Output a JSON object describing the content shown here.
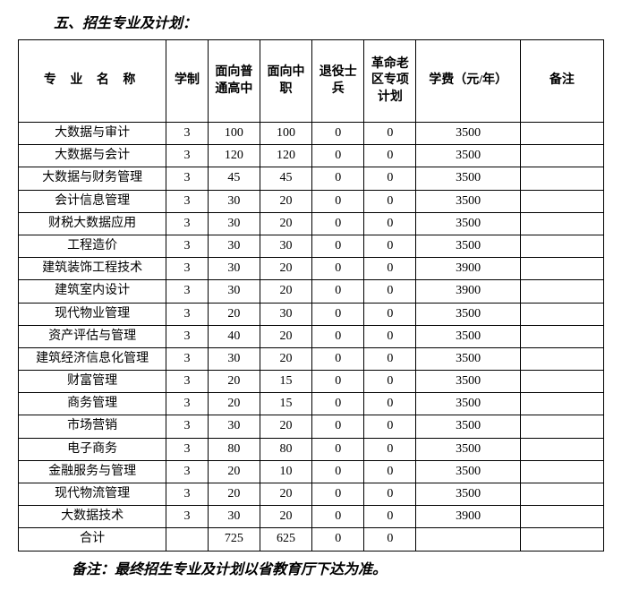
{
  "title": "五、招生专业及计划：",
  "headers": {
    "name": "专 业 名 称",
    "duration": "学制",
    "colA": "面向普通高中",
    "colB": "面向中职",
    "colC": "退役士兵",
    "colD": "革命老区专项计划",
    "fee": "学费（元/年）",
    "remark": "备注"
  },
  "table": {
    "columns": [
      "name",
      "duration",
      "a",
      "b",
      "c",
      "d",
      "fee",
      "remark"
    ],
    "rows": [
      [
        "大数据与审计",
        "3",
        "100",
        "100",
        "0",
        "0",
        "3500",
        ""
      ],
      [
        "大数据与会计",
        "3",
        "120",
        "120",
        "0",
        "0",
        "3500",
        ""
      ],
      [
        "大数据与财务管理",
        "3",
        "45",
        "45",
        "0",
        "0",
        "3500",
        ""
      ],
      [
        "会计信息管理",
        "3",
        "30",
        "20",
        "0",
        "0",
        "3500",
        ""
      ],
      [
        "财税大数据应用",
        "3",
        "30",
        "20",
        "0",
        "0",
        "3500",
        ""
      ],
      [
        "工程造价",
        "3",
        "30",
        "30",
        "0",
        "0",
        "3500",
        ""
      ],
      [
        "建筑装饰工程技术",
        "3",
        "30",
        "20",
        "0",
        "0",
        "3900",
        ""
      ],
      [
        "建筑室内设计",
        "3",
        "30",
        "20",
        "0",
        "0",
        "3900",
        ""
      ],
      [
        "现代物业管理",
        "3",
        "20",
        "30",
        "0",
        "0",
        "3500",
        ""
      ],
      [
        "资产评估与管理",
        "3",
        "40",
        "20",
        "0",
        "0",
        "3500",
        ""
      ],
      [
        "建筑经济信息化管理",
        "3",
        "30",
        "20",
        "0",
        "0",
        "3500",
        ""
      ],
      [
        "财富管理",
        "3",
        "20",
        "15",
        "0",
        "0",
        "3500",
        ""
      ],
      [
        "商务管理",
        "3",
        "20",
        "15",
        "0",
        "0",
        "3500",
        ""
      ],
      [
        "市场营销",
        "3",
        "30",
        "20",
        "0",
        "0",
        "3500",
        ""
      ],
      [
        "电子商务",
        "3",
        "80",
        "80",
        "0",
        "0",
        "3500",
        ""
      ],
      [
        "金融服务与管理",
        "3",
        "20",
        "10",
        "0",
        "0",
        "3500",
        ""
      ],
      [
        "现代物流管理",
        "3",
        "20",
        "20",
        "0",
        "0",
        "3500",
        ""
      ],
      [
        "大数据技术",
        "3",
        "30",
        "20",
        "0",
        "0",
        "3900",
        ""
      ]
    ],
    "total": [
      "合计",
      "",
      "725",
      "625",
      "0",
      "0",
      "",
      ""
    ]
  },
  "footer": "备注：最终招生专业及计划以省教育厅下达为准。",
  "style": {
    "border_color": "#000000",
    "background_color": "#ffffff",
    "font_family": "SimSun",
    "header_fontsize": 14,
    "cell_fontsize": 14,
    "title_fontsize": 16
  }
}
